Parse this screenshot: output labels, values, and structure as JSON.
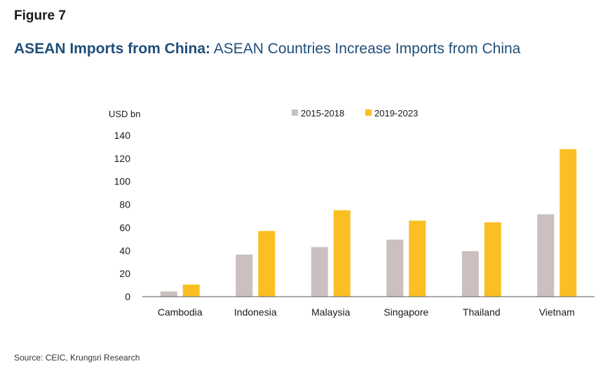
{
  "header": {
    "figure_label": "Figure 7",
    "title_bold": "ASEAN Imports from China:",
    "title_rest": " ASEAN Countries Increase Imports from China"
  },
  "source": "Source: CEIC, Krungsri Research",
  "colors": {
    "series1": "#cbbfbf",
    "series2": "#fbbf24",
    "axis": "#595959"
  },
  "chart_data": {
    "type": "bar",
    "title": "ASEAN Imports from China: ASEAN Countries Increase Imports from China",
    "ylabel": "USD bn",
    "xlabel": "",
    "categories": [
      "Cambodia",
      "Indonesia",
      "Malaysia",
      "Singapore",
      "Thailand",
      "Vietnam"
    ],
    "series": [
      {
        "name": "2015-2018",
        "values": [
          4.5,
          36.5,
          43,
          49.5,
          39.5,
          71.5
        ]
      },
      {
        "name": "2019-2023",
        "values": [
          10.5,
          57,
          75,
          66,
          64.5,
          128
        ]
      }
    ],
    "ylim": [
      0,
      140
    ],
    "yticks": [
      0,
      20,
      40,
      60,
      80,
      100,
      120,
      140
    ],
    "grid": false,
    "legend": "top"
  }
}
